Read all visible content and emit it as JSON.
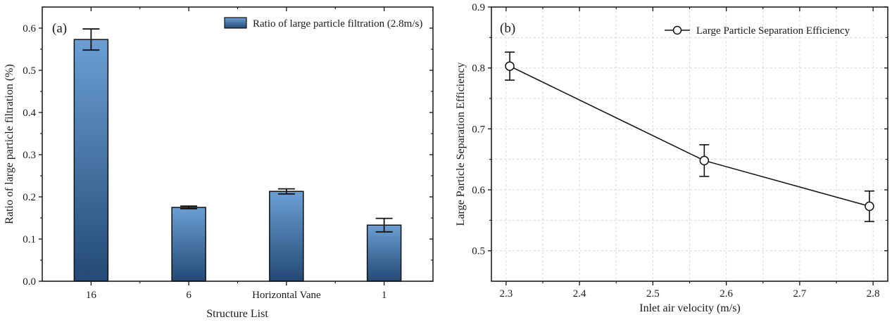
{
  "chart_data": [
    {
      "type": "bar",
      "panel_label": "(a)",
      "categories": [
        "16",
        "6",
        "Horizontal Vane",
        "1"
      ],
      "series": [
        {
          "name": "Ratio of large particle filtration (2.8m/s)",
          "values": [
            0.573,
            0.175,
            0.213,
            0.133
          ],
          "errors": [
            0.025,
            0.003,
            0.006,
            0.016
          ]
        }
      ],
      "xlabel": "Structure List",
      "ylabel": "Ratio of  large particle filtration (%)",
      "ylim": [
        0,
        0.65
      ],
      "yticks": [
        "0.0",
        "0.1",
        "0.2",
        "0.3",
        "0.4",
        "0.5",
        "0.6"
      ],
      "legend_position": "top-right",
      "grid": false,
      "colors": {
        "bar_top": "#6b9fd4",
        "bar_bottom": "#234a74",
        "edge": "#111111"
      }
    },
    {
      "type": "line",
      "panel_label": "(b)",
      "series": [
        {
          "name": "Large Particle Separation Efficiency",
          "x": [
            2.305,
            2.57,
            2.795
          ],
          "y": [
            0.803,
            0.648,
            0.573
          ],
          "errors": [
            0.023,
            0.026,
            0.025
          ]
        }
      ],
      "xlabel": "Inlet air velocity (m/s)",
      "ylabel": "Large Particle Separation Efficiency",
      "xlim": [
        2.28,
        2.82
      ],
      "ylim": [
        0.45,
        0.9
      ],
      "xticks": [
        "2.3",
        "2.4",
        "2.5",
        "2.6",
        "2.7",
        "2.8"
      ],
      "yticks": [
        "0.5",
        "0.6",
        "0.7",
        "0.8",
        "0.9"
      ],
      "legend_position": "top-right",
      "grid": true,
      "colors": {
        "line": "#111111",
        "marker_fill": "#ffffff",
        "grid": "#d9d9d9"
      }
    }
  ]
}
